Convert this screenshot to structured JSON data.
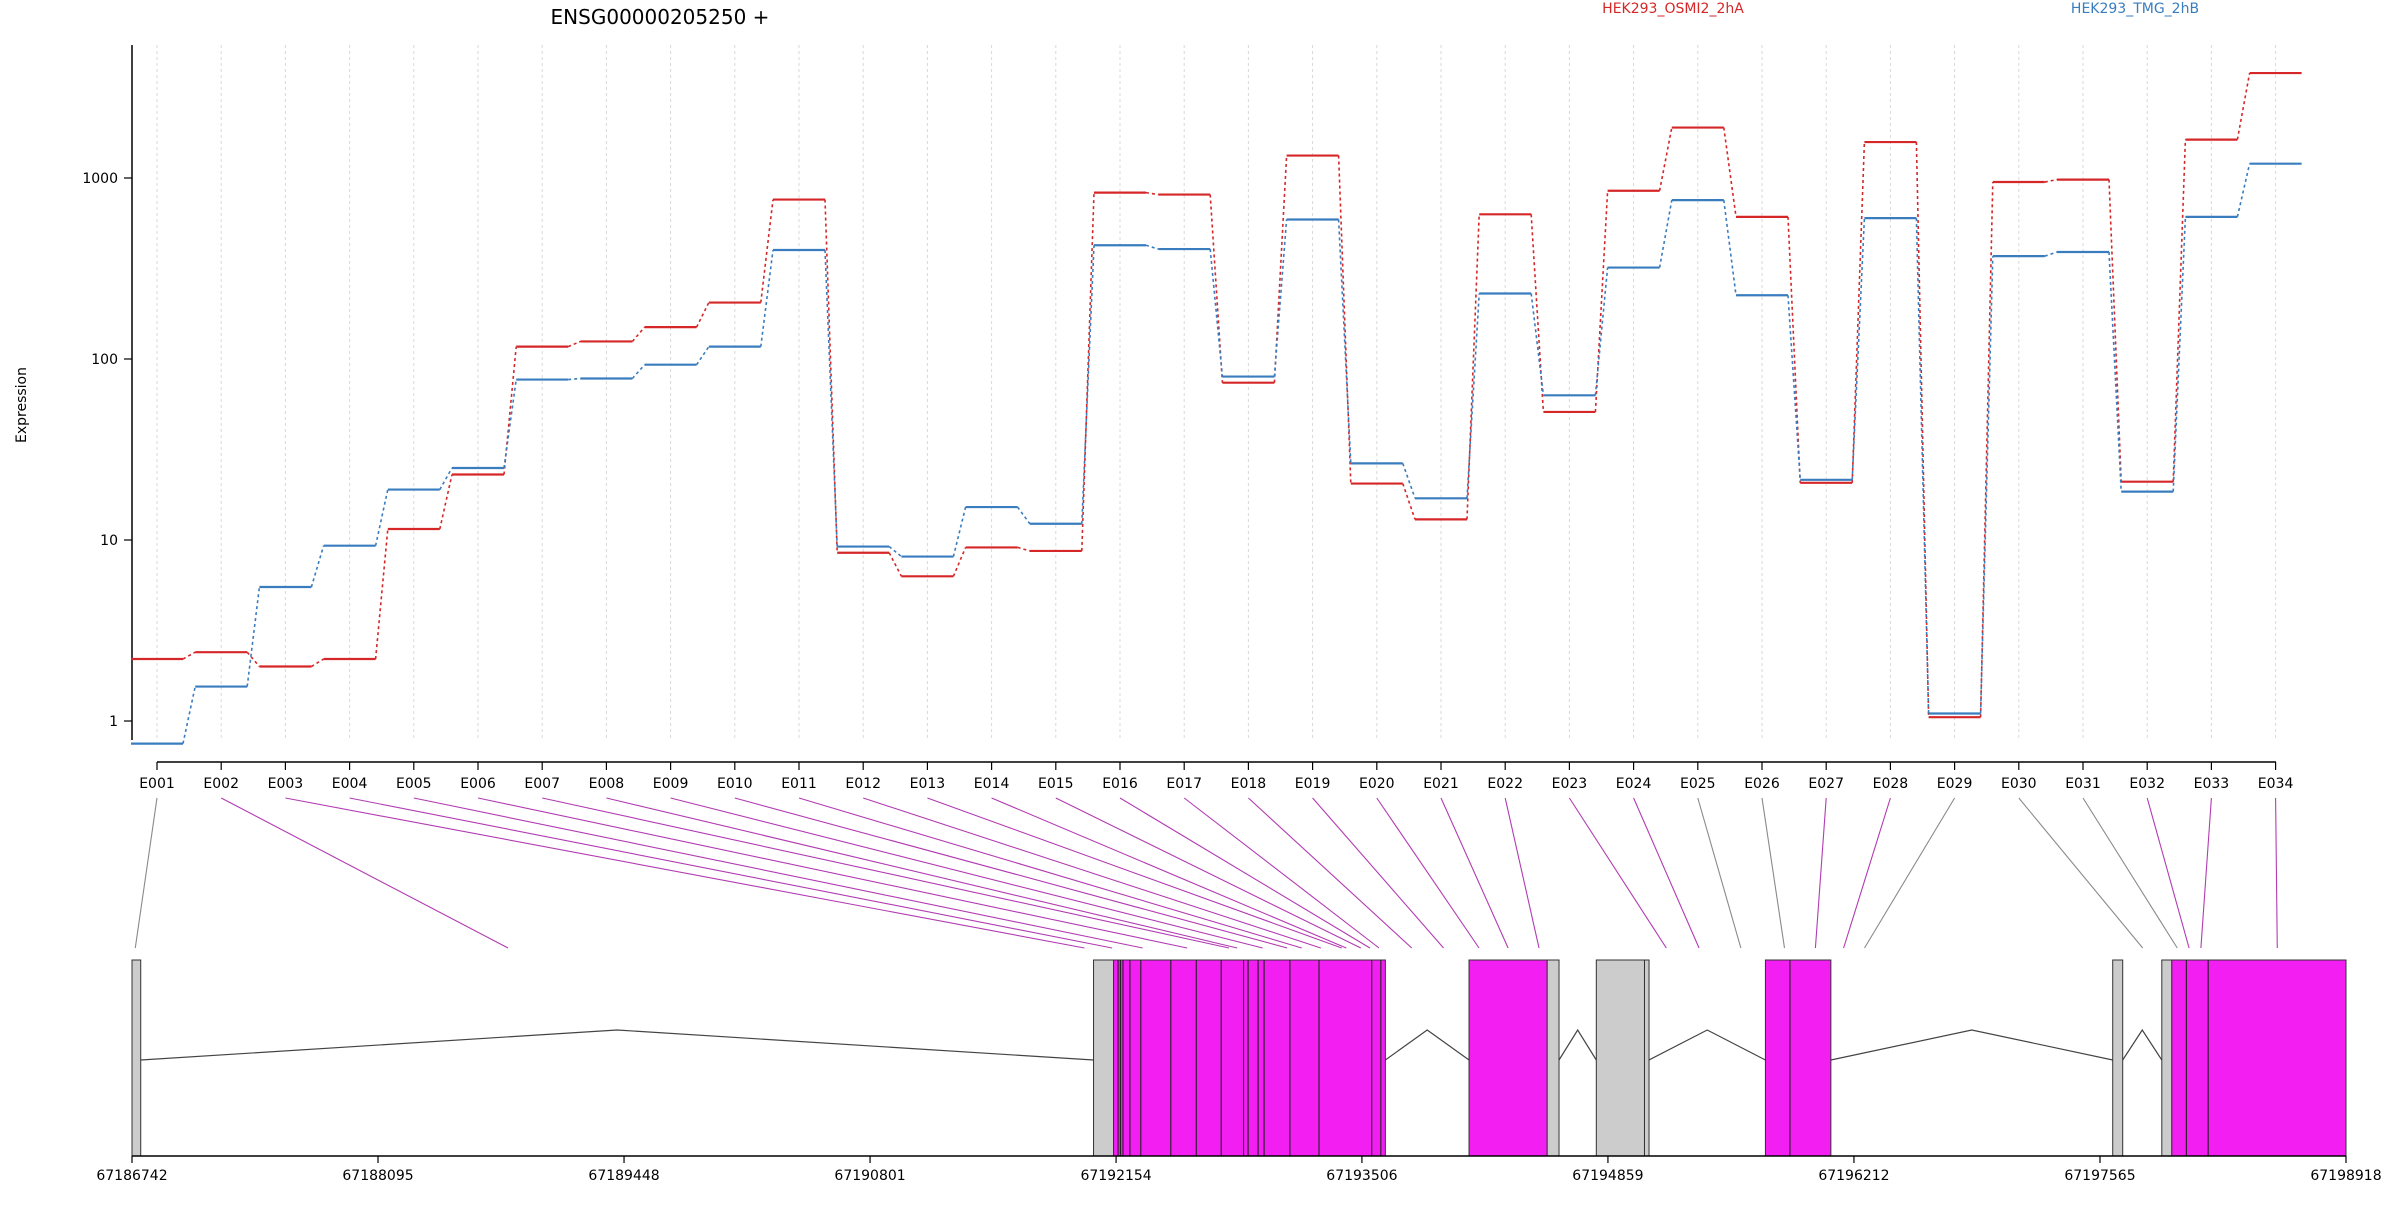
{
  "title": "ENSG00000205250 +",
  "ylabel": "Expression",
  "legend": [
    {
      "name": "HEK293_OSMI2_2hA",
      "color": "#d62728"
    },
    {
      "name": "HEK293_TMG_2hB",
      "color": "#3a7dbf"
    }
  ],
  "colors": {
    "series_a": "#d62728",
    "series_b": "#3a7dbf",
    "exon_highlight": "#f21ef2",
    "exon_plain": "#cccccc",
    "connector_highlight": "#b23bb2",
    "connector_plain": "#8a8a8a",
    "grid": "#d9d9d9"
  },
  "chart_data": {
    "type": "line",
    "scale": "log",
    "ylim": [
      0.4,
      5000
    ],
    "yticks": [
      1,
      10,
      100,
      1000
    ],
    "ytick_labels": [
      "1",
      "10",
      "100",
      "1000"
    ],
    "categories": [
      "E001",
      "E002",
      "E003",
      "E004",
      "E005",
      "E006",
      "E007",
      "E008",
      "E009",
      "E010",
      "E011",
      "E012",
      "E013",
      "E014",
      "E015",
      "E016",
      "E017",
      "E018",
      "E019",
      "E020",
      "E021",
      "E022",
      "E023",
      "E024",
      "E025",
      "E026",
      "E027",
      "E028",
      "E029",
      "E030",
      "E031",
      "E032",
      "E033",
      "E034"
    ],
    "series": [
      {
        "name": "HEK293_OSMI2_2hA",
        "values": [
          2.2,
          2.4,
          2.0,
          2.2,
          11.5,
          23,
          117,
          125,
          150,
          205,
          760,
          8.5,
          6.3,
          9.1,
          8.7,
          830,
          810,
          74,
          1330,
          20.5,
          13,
          630,
          51,
          850,
          1900,
          610,
          20.7,
          1580,
          1.05,
          950,
          980,
          21,
          1630,
          3800
        ]
      },
      {
        "name": "HEK293_TMG_2hB",
        "values": [
          0.75,
          1.55,
          5.5,
          9.3,
          19,
          25,
          77,
          78,
          93,
          117,
          400,
          9.2,
          8.1,
          15.2,
          12.3,
          425,
          405,
          80,
          590,
          26.5,
          17,
          230,
          63,
          320,
          755,
          225,
          21.5,
          600,
          1.1,
          370,
          390,
          18.5,
          610,
          1200
        ]
      }
    ],
    "genome": {
      "start": 67186742,
      "end": 67198918,
      "tick_labels": [
        "67186742",
        "67188095",
        "67189448",
        "67190801",
        "67192154",
        "67193506",
        "67194859",
        "67196212",
        "67197565",
        "67198918"
      ],
      "exon_positions": [
        67186760,
        67188810,
        67191980,
        67192132,
        67192300,
        67192545,
        67192775,
        67192820,
        67192960,
        67193095,
        67193175,
        67193280,
        67193395,
        67193420,
        67193500,
        67193550,
        67193600,
        67193780,
        67193955,
        67194150,
        67194310,
        67194480,
        67195180,
        67195360,
        67195590,
        67195830,
        67196000,
        67196155,
        67196270,
        67197800,
        67197990,
        67198055,
        67198120,
        67198540
      ],
      "highlighted": [
        false,
        true,
        true,
        true,
        true,
        true,
        true,
        true,
        true,
        true,
        true,
        true,
        true,
        true,
        true,
        true,
        true,
        true,
        true,
        true,
        true,
        true,
        true,
        true,
        false,
        false,
        true,
        true,
        false,
        false,
        false,
        true,
        true,
        true
      ],
      "blocks": [
        {
          "start": 67186742,
          "end": 67186790,
          "highlighted": false
        },
        {
          "start": 67192030,
          "end": 67192140,
          "highlighted": false
        },
        {
          "start": 67192140,
          "end": 67193635,
          "highlighted": true
        },
        {
          "start": 67194095,
          "end": 67194525,
          "highlighted": true
        },
        {
          "start": 67194525,
          "end": 67194590,
          "highlighted": false
        },
        {
          "start": 67194795,
          "end": 67195060,
          "highlighted": false
        },
        {
          "start": 67195060,
          "end": 67195085,
          "highlighted": false
        },
        {
          "start": 67195725,
          "end": 67196085,
          "highlighted": true
        },
        {
          "start": 67197635,
          "end": 67197690,
          "highlighted": false
        },
        {
          "start": 67197905,
          "end": 67197960,
          "highlighted": false
        },
        {
          "start": 67197960,
          "end": 67198918,
          "highlighted": true
        }
      ],
      "block_dividers": [
        67192165,
        67192178,
        67192192,
        67192230,
        67192290,
        67192455,
        67192595,
        67192732,
        67192855,
        67192880,
        67192935,
        67192968,
        67193110,
        67193270,
        67193560,
        67193610,
        67195860,
        67198040,
        67198160
      ]
    }
  }
}
